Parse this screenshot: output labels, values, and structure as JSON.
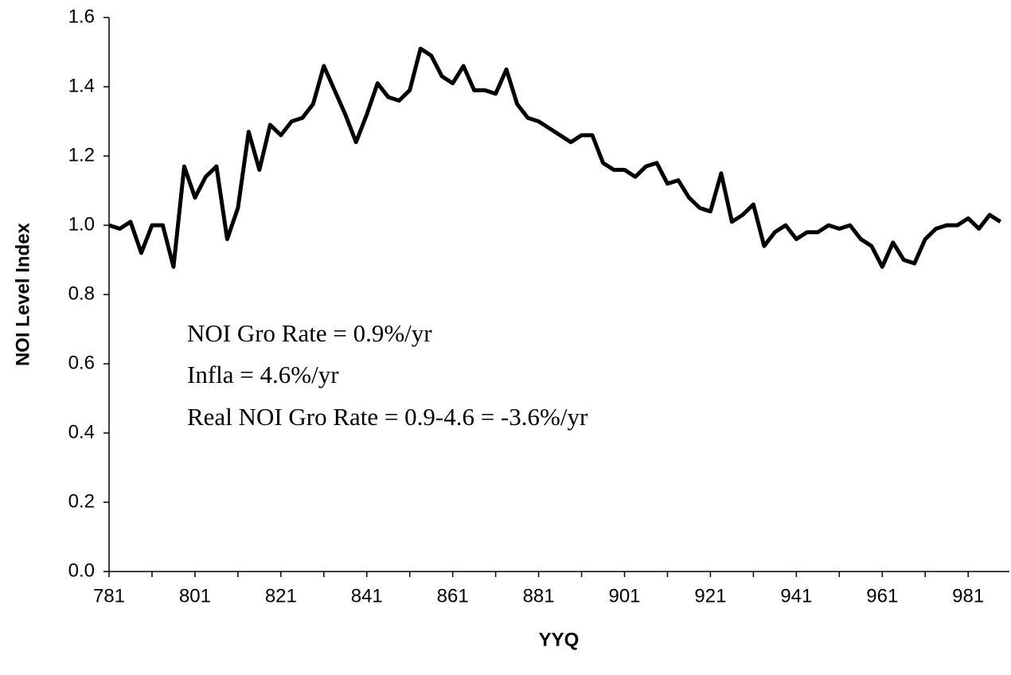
{
  "chart_data": {
    "type": "line",
    "x_label": "YYQ",
    "y_label": "NOI Level Index",
    "annotations": [
      "NOI Gro Rate = 0.9%/yr",
      "Infla = 4.6%/yr",
      "Real NOI Gro Rate = 0.9-4.6 = -3.6%/yr"
    ],
    "categories": [
      "781",
      null,
      null,
      null,
      null,
      null,
      null,
      null,
      "801",
      null,
      null,
      null,
      null,
      null,
      null,
      null,
      "821",
      null,
      null,
      null,
      null,
      null,
      null,
      null,
      "841",
      null,
      null,
      null,
      null,
      null,
      null,
      null,
      "861",
      null,
      null,
      null,
      null,
      null,
      null,
      null,
      "881",
      null,
      null,
      null,
      null,
      null,
      null,
      null,
      "901",
      null,
      null,
      null,
      null,
      null,
      null,
      null,
      "921",
      null,
      null,
      null,
      null,
      null,
      null,
      null,
      "941",
      null,
      null,
      null,
      null,
      null,
      null,
      null,
      "961",
      null,
      null,
      null,
      null,
      null,
      null,
      null,
      "981",
      null,
      null,
      null
    ],
    "series": [
      {
        "name": "NOI Level Index",
        "color": "#000000",
        "values": [
          1.0,
          0.99,
          1.01,
          0.92,
          1.0,
          1.0,
          0.88,
          1.17,
          1.08,
          1.14,
          1.17,
          0.96,
          1.05,
          1.27,
          1.16,
          1.29,
          1.26,
          1.3,
          1.31,
          1.35,
          1.46,
          1.39,
          1.32,
          1.24,
          1.32,
          1.41,
          1.37,
          1.36,
          1.39,
          1.51,
          1.49,
          1.43,
          1.41,
          1.46,
          1.39,
          1.39,
          1.38,
          1.45,
          1.35,
          1.31,
          1.3,
          1.28,
          1.26,
          1.24,
          1.26,
          1.26,
          1.18,
          1.16,
          1.16,
          1.14,
          1.17,
          1.18,
          1.12,
          1.13,
          1.08,
          1.05,
          1.04,
          1.15,
          1.01,
          1.03,
          1.06,
          0.94,
          0.98,
          1.0,
          0.96,
          0.98,
          0.98,
          1.0,
          0.99,
          1.0,
          0.96,
          0.94,
          0.88,
          0.95,
          0.9,
          0.89,
          0.96,
          0.99,
          1.0,
          1.0,
          1.02,
          0.99,
          1.03,
          1.01
        ]
      }
    ],
    "ylim": [
      0,
      1.6
    ],
    "yticks": [
      {
        "value": 0,
        "label": "0.0"
      },
      0.2,
      0.4,
      0.6,
      0.8,
      {
        "value": 1,
        "label": "1.0"
      },
      1.2,
      1.4,
      1.6
    ],
    "grid": false
  }
}
